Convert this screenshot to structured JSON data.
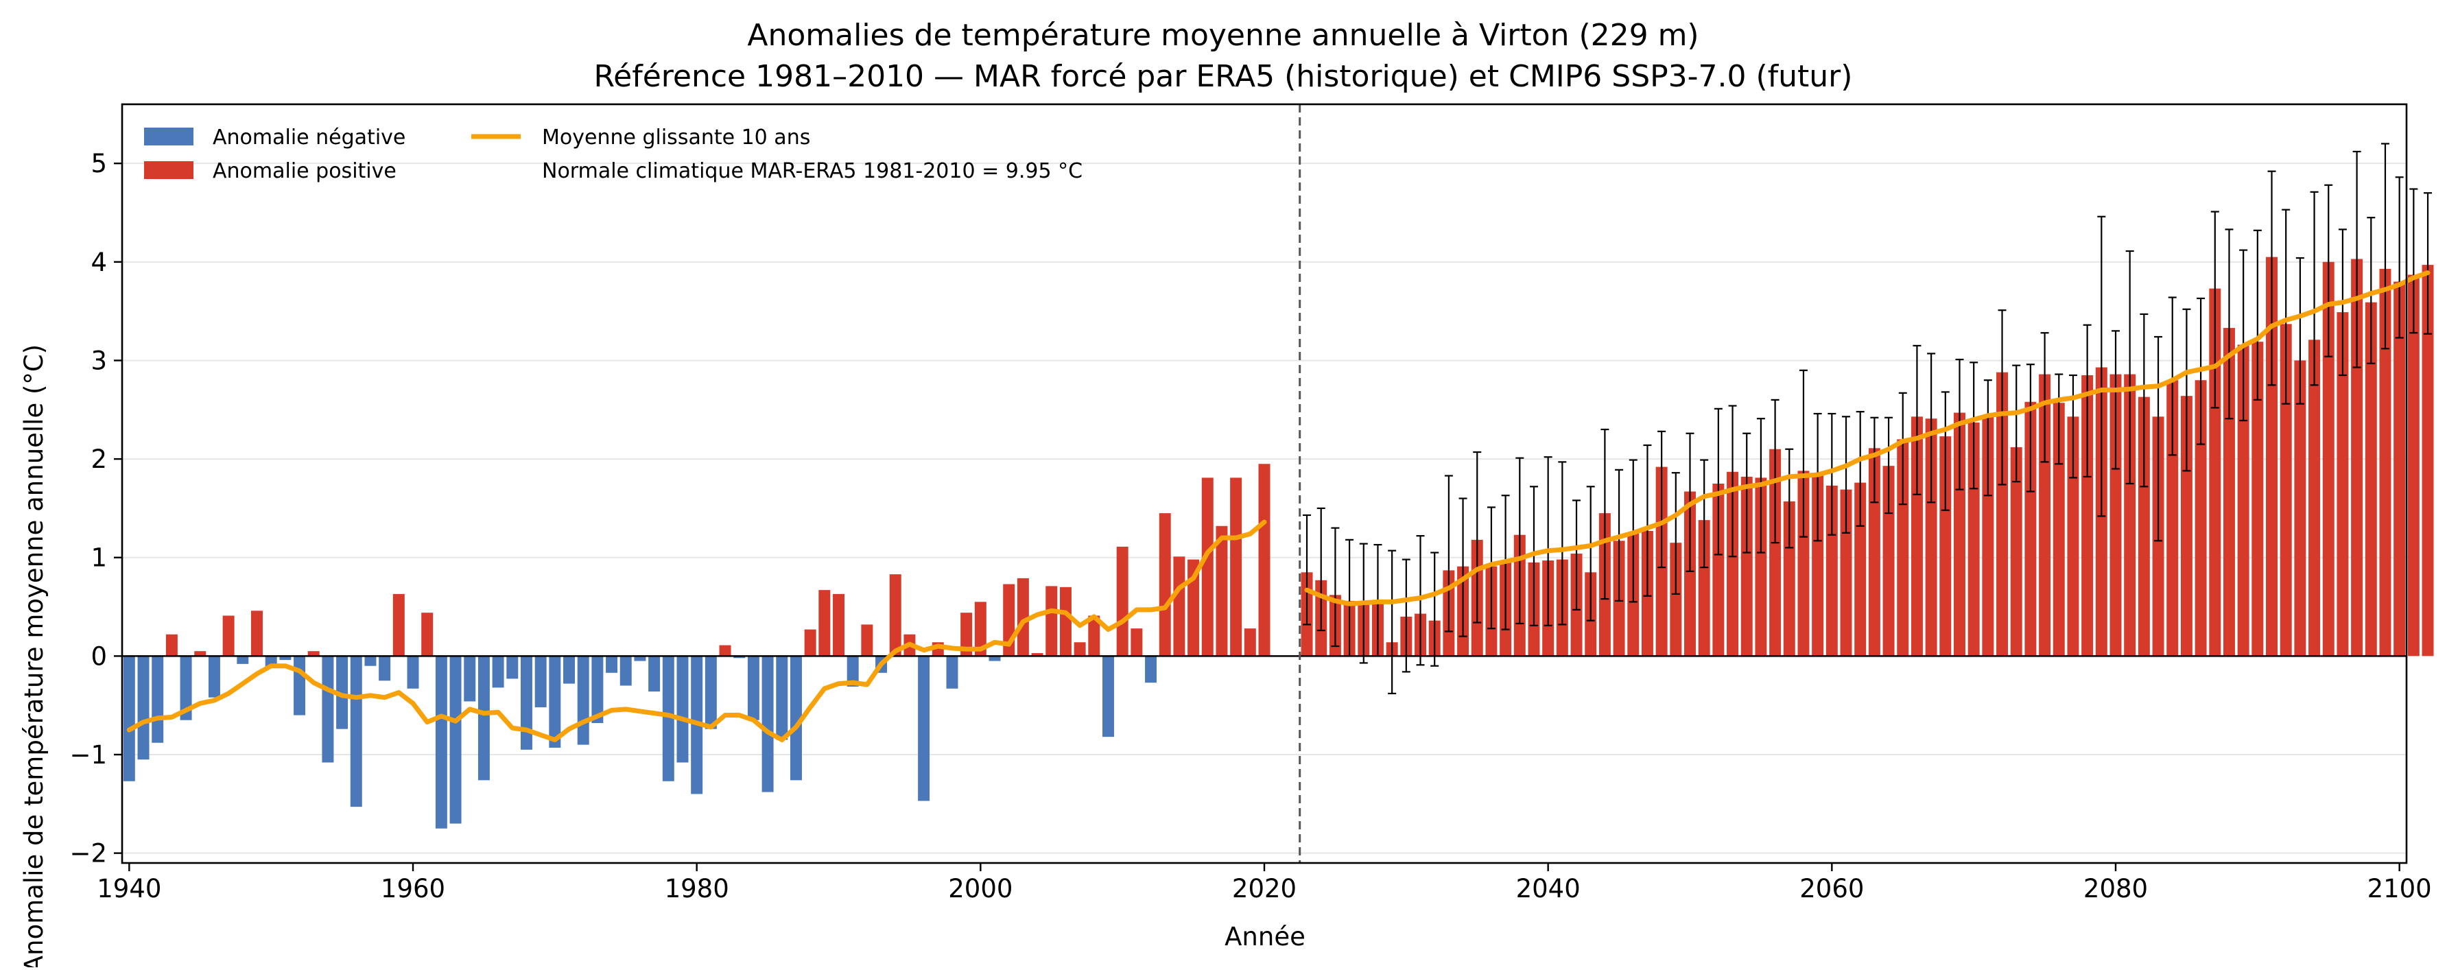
{
  "chart_data": {
    "type": "bar",
    "title": "Anomalies de température moyenne annuelle à Virton (229 m)",
    "subtitle": "Référence 1981–2010 — MAR forcé par ERA5 (historique) et CMIP6 SSP3-7.0 (futur)",
    "xlabel": "Année",
    "ylabel": "Anomalie de température moyenne annuelle (°C)",
    "xlim": [
      1939.5,
      2100.5
    ],
    "ylim": [
      -2.1,
      5.6
    ],
    "xticks": [
      1940,
      1960,
      1980,
      2000,
      2020,
      2040,
      2060,
      2080,
      2100
    ],
    "yticks": [
      -2,
      -1,
      0,
      1,
      2,
      3,
      4,
      5
    ],
    "xtick_labels": [
      "1940",
      "1960",
      "1980",
      "2000",
      "2020",
      "2040",
      "2060",
      "2080",
      "2100"
    ],
    "ytick_labels": [
      "−2",
      "−1",
      "0",
      "1",
      "2",
      "3",
      "4",
      "5"
    ],
    "grid": "horizontal",
    "colors": {
      "negative": "#4a78b8",
      "positive": "#d53a2b",
      "rolling_mean": "#f8a20b",
      "errorbar": "#000000",
      "divider": "#555555",
      "zero_line": "#000000"
    },
    "legend": {
      "placement": "top-left",
      "entries": [
        {
          "label": "Anomalie négative",
          "kind": "patch",
          "color_key": "negative"
        },
        {
          "label": "Anomalie positive",
          "kind": "patch",
          "color_key": "positive"
        },
        {
          "label": "Moyenne glissante 10 ans",
          "kind": "line",
          "color_key": "rolling_mean"
        },
        {
          "label": "Normale climatique MAR-ERA5 1981-2010 = 9.95 °C",
          "kind": "text",
          "color_key": null
        }
      ]
    },
    "divider_year": 2022.5,
    "historical": {
      "start_year": 1940,
      "values": [
        -1.27,
        -1.05,
        -0.88,
        0.22,
        -0.65,
        0.05,
        -0.42,
        0.41,
        -0.08,
        0.46,
        -0.12,
        -0.04,
        -0.6,
        0.05,
        -1.08,
        -0.74,
        -1.53,
        -0.1,
        -0.25,
        0.63,
        -0.33,
        0.44,
        -1.75,
        -1.7,
        -0.46,
        -1.26,
        -0.32,
        -0.23,
        -0.95,
        -0.52,
        -0.93,
        -0.28,
        -0.9,
        -0.68,
        -0.17,
        -0.3,
        -0.05,
        -0.36,
        -1.27,
        -1.08,
        -1.4,
        -0.74,
        0.11,
        -0.02,
        -0.65,
        -1.38,
        -0.85,
        -1.26,
        0.27,
        0.67,
        0.63,
        -0.31,
        0.32,
        -0.17,
        0.83,
        0.22,
        -1.47,
        0.14,
        -0.33,
        0.44,
        0.55,
        -0.05,
        0.73,
        0.79,
        0.03,
        0.71,
        0.7,
        0.14,
        0.41,
        -0.82,
        1.11,
        0.28,
        -0.27,
        1.45,
        1.01,
        0.98,
        1.81,
        1.32,
        1.81,
        0.28,
        1.95
      ],
      "rolling_mean": [
        -0.75,
        -0.67,
        -0.63,
        -0.62,
        -0.55,
        -0.48,
        -0.45,
        -0.38,
        -0.28,
        -0.18,
        -0.1,
        -0.1,
        -0.15,
        -0.27,
        -0.34,
        -0.4,
        -0.42,
        -0.4,
        -0.42,
        -0.37,
        -0.48,
        -0.67,
        -0.61,
        -0.66,
        -0.54,
        -0.58,
        -0.57,
        -0.73,
        -0.75,
        -0.8,
        -0.85,
        -0.74,
        -0.67,
        -0.61,
        -0.55,
        -0.54,
        -0.56,
        -0.58,
        -0.6,
        -0.64,
        -0.68,
        -0.72,
        -0.6,
        -0.6,
        -0.65,
        -0.77,
        -0.85,
        -0.72,
        -0.52,
        -0.33,
        -0.28,
        -0.27,
        -0.29,
        -0.08,
        0.05,
        0.12,
        0.06,
        0.1,
        0.08,
        0.07,
        0.07,
        0.14,
        0.12,
        0.35,
        0.42,
        0.46,
        0.44,
        0.31,
        0.4,
        0.27,
        0.35,
        0.47,
        0.47,
        0.49,
        0.69,
        0.79,
        1.05,
        1.2,
        1.2,
        1.24,
        1.36
      ]
    },
    "projection": {
      "start_year": 2023,
      "values": [
        0.85,
        0.77,
        0.62,
        0.56,
        0.53,
        0.55,
        0.14,
        0.4,
        0.43,
        0.36,
        0.87,
        0.91,
        1.18,
        0.91,
        0.96,
        1.23,
        0.95,
        0.97,
        0.98,
        1.04,
        0.85,
        1.45,
        1.17,
        1.25,
        1.27,
        1.92,
        1.15,
        1.67,
        1.38,
        1.75,
        1.87,
        1.82,
        1.81,
        2.1,
        1.57,
        1.88,
        1.84,
        1.73,
        1.69,
        1.76,
        2.11,
        1.93,
        2.2,
        2.43,
        2.41,
        2.23,
        2.47,
        2.37,
        2.43,
        2.88,
        2.12,
        2.58,
        2.86,
        2.57,
        2.43,
        2.85,
        2.93,
        2.86,
        2.86,
        2.63,
        2.43,
        2.8,
        2.64,
        2.8,
        3.73,
        3.33,
        3.16,
        3.19,
        4.05,
        3.37,
        3.0,
        3.21,
        4.0,
        3.49,
        4.03,
        3.59,
        3.93,
        3.8,
        3.87,
        3.97
      ],
      "error_low": [
        0.32,
        0.26,
        0.1,
        0.0,
        -0.07,
        0.0,
        -0.38,
        -0.16,
        -0.09,
        -0.1,
        0.25,
        0.2,
        0.34,
        0.28,
        0.27,
        0.33,
        0.31,
        0.31,
        0.32,
        0.47,
        0.36,
        0.58,
        0.56,
        0.55,
        0.61,
        0.9,
        0.63,
        0.86,
        0.9,
        1.03,
        1.01,
        1.05,
        1.05,
        1.15,
        1.1,
        1.21,
        1.17,
        1.23,
        1.25,
        1.32,
        1.56,
        1.45,
        1.54,
        1.64,
        1.56,
        1.48,
        1.69,
        1.7,
        1.63,
        1.74,
        1.77,
        1.67,
        1.97,
        1.95,
        1.81,
        1.82,
        1.42,
        1.9,
        1.75,
        1.72,
        1.17,
        2.04,
        1.88,
        2.15,
        2.52,
        2.41,
        2.39,
        2.6,
        2.75,
        2.56,
        2.56,
        2.75,
        3.04,
        2.85,
        2.93,
        2.97,
        3.12,
        3.23,
        3.28,
        3.27
      ],
      "error_high": [
        1.43,
        1.5,
        1.3,
        1.18,
        1.14,
        1.13,
        1.07,
        0.98,
        1.22,
        1.05,
        1.83,
        1.6,
        2.07,
        1.51,
        1.63,
        2.01,
        1.72,
        2.02,
        1.97,
        1.58,
        1.72,
        2.3,
        1.89,
        1.99,
        2.14,
        2.28,
        1.86,
        2.26,
        1.99,
        2.51,
        2.54,
        2.26,
        2.41,
        2.6,
        2.1,
        2.9,
        2.46,
        2.46,
        2.43,
        2.48,
        2.42,
        2.42,
        2.67,
        3.15,
        3.07,
        2.68,
        3.01,
        2.98,
        2.8,
        3.51,
        2.95,
        2.96,
        3.28,
        2.86,
        2.85,
        3.36,
        4.46,
        3.3,
        4.11,
        3.47,
        3.24,
        3.64,
        3.52,
        3.63,
        4.51,
        4.33,
        4.12,
        4.32,
        4.92,
        4.53,
        4.04,
        4.71,
        4.78,
        4.33,
        5.12,
        4.45,
        5.2,
        4.86,
        4.74,
        4.7
      ],
      "rolling_mean": [
        0.67,
        0.61,
        0.56,
        0.53,
        0.54,
        0.55,
        0.55,
        0.57,
        0.59,
        0.63,
        0.69,
        0.78,
        0.88,
        0.93,
        0.96,
        0.99,
        1.04,
        1.07,
        1.08,
        1.1,
        1.12,
        1.17,
        1.21,
        1.25,
        1.3,
        1.35,
        1.43,
        1.54,
        1.62,
        1.65,
        1.69,
        1.72,
        1.74,
        1.78,
        1.82,
        1.83,
        1.84,
        1.88,
        1.93,
        2.0,
        2.04,
        2.1,
        2.18,
        2.21,
        2.26,
        2.3,
        2.36,
        2.4,
        2.44,
        2.46,
        2.47,
        2.51,
        2.57,
        2.6,
        2.62,
        2.66,
        2.7,
        2.7,
        2.71,
        2.73,
        2.74,
        2.8,
        2.88,
        2.91,
        2.94,
        3.05,
        3.15,
        3.22,
        3.35,
        3.41,
        3.45,
        3.5,
        3.57,
        3.59,
        3.63,
        3.68,
        3.72,
        3.77,
        3.84,
        3.89
      ]
    }
  }
}
